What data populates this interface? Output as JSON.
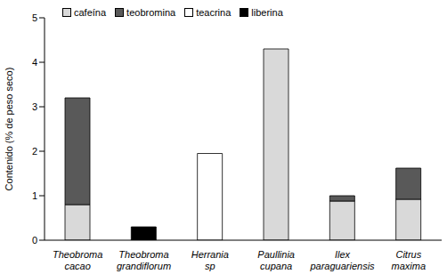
{
  "chart_data": {
    "type": "bar",
    "stacked": true,
    "ylabel": "Contenido (% de peso seco)",
    "categories": [
      "Theobroma cacao",
      "Theobroma grandiflorum",
      "Herrania sp",
      "Paullinia cupana",
      "Ilex paraguariensis",
      "Citrus maxima"
    ],
    "series": [
      {
        "name": "cafeína",
        "color": "#d9d9d9",
        "values": [
          0.8,
          0,
          0,
          4.3,
          0.88,
          0.92
        ]
      },
      {
        "name": "teobromina",
        "color": "#595959",
        "values": [
          2.4,
          0,
          0,
          0,
          0.12,
          0.7
        ]
      },
      {
        "name": "teacrina",
        "color": "#ffffff",
        "values": [
          0,
          0,
          1.95,
          0,
          0,
          0
        ]
      },
      {
        "name": "liberina",
        "color": "#000000",
        "values": [
          0,
          0.3,
          0,
          0,
          0,
          0
        ]
      }
    ],
    "ylim": [
      0,
      5
    ],
    "yticks": [
      0,
      1,
      2,
      3,
      4,
      5
    ],
    "legend": "upper left",
    "grid": false
  }
}
